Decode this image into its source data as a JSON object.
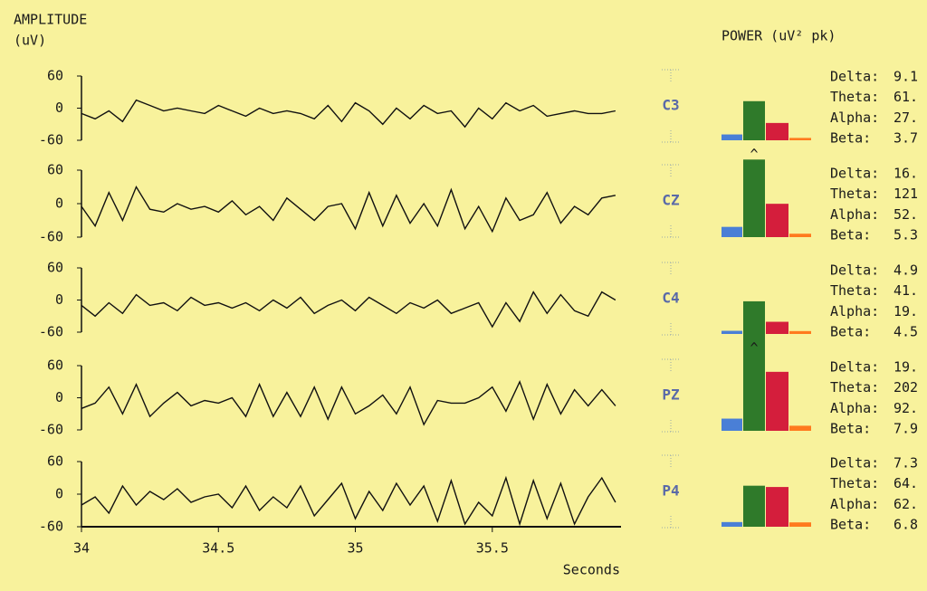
{
  "header": {
    "amplitude_label": "AMPLITUDE",
    "amplitude_unit": "(uV)",
    "power_label": "POWER (uV² pk)"
  },
  "chart_data": [
    {
      "type": "line",
      "x_label": "Seconds",
      "xlim": [
        34,
        35.97
      ],
      "xticks": [
        34,
        34.5,
        35,
        35.5
      ],
      "ylim": [
        -60,
        60
      ],
      "yticks": [
        -60,
        0,
        60
      ],
      "color": "#111111",
      "x": [
        34,
        34.05,
        34.1,
        34.15,
        34.2,
        34.25,
        34.3,
        34.35,
        34.4,
        34.45,
        34.5,
        34.55,
        34.6,
        34.65,
        34.7,
        34.75,
        34.8,
        34.85,
        34.9,
        34.95,
        35,
        35.05,
        35.1,
        35.15,
        35.2,
        35.25,
        35.3,
        35.35,
        35.4,
        35.45,
        35.5,
        35.55,
        35.6,
        35.65,
        35.7,
        35.75,
        35.8,
        35.85,
        35.9,
        35.95
      ],
      "series": [
        {
          "name": "C3",
          "values": [
            -10,
            -20,
            -5,
            -25,
            15,
            5,
            -5,
            0,
            -5,
            -10,
            5,
            -5,
            -15,
            0,
            -10,
            -5,
            -10,
            -20,
            5,
            -25,
            10,
            -5,
            -30,
            0,
            -20,
            5,
            -10,
            -5,
            -35,
            0,
            -20,
            10,
            -5,
            5,
            -15,
            -10,
            -5,
            -10,
            -10,
            -5
          ]
        },
        {
          "name": "CZ",
          "values": [
            -5,
            -40,
            20,
            -30,
            30,
            -10,
            -15,
            0,
            -10,
            -5,
            -15,
            5,
            -20,
            -5,
            -30,
            10,
            -10,
            -30,
            -5,
            0,
            -45,
            20,
            -40,
            15,
            -35,
            0,
            -40,
            25,
            -45,
            -5,
            -50,
            10,
            -30,
            -20,
            20,
            -35,
            -5,
            -20,
            10,
            15
          ]
        },
        {
          "name": "C4",
          "values": [
            -10,
            -30,
            -5,
            -25,
            10,
            -10,
            -5,
            -20,
            5,
            -10,
            -5,
            -15,
            -5,
            -20,
            0,
            -15,
            5,
            -25,
            -10,
            0,
            -20,
            5,
            -10,
            -25,
            -5,
            -15,
            0,
            -25,
            -15,
            -5,
            -50,
            -5,
            -40,
            15,
            -25,
            10,
            -20,
            -30,
            15,
            0
          ]
        },
        {
          "name": "PZ",
          "values": [
            -20,
            -10,
            20,
            -30,
            25,
            -35,
            -10,
            10,
            -15,
            -5,
            -10,
            0,
            -35,
            25,
            -35,
            10,
            -35,
            20,
            -40,
            20,
            -30,
            -15,
            5,
            -30,
            20,
            -50,
            -5,
            -10,
            -10,
            0,
            20,
            -25,
            30,
            -40,
            25,
            -30,
            15,
            -15,
            15,
            -15
          ]
        },
        {
          "name": "P4",
          "values": [
            -20,
            -5,
            -35,
            15,
            -20,
            5,
            -10,
            10,
            -15,
            -5,
            0,
            -25,
            15,
            -30,
            -5,
            -25,
            15,
            -40,
            -10,
            20,
            -45,
            5,
            -30,
            20,
            -20,
            15,
            -50,
            25,
            -55,
            -15,
            -40,
            30,
            -55,
            25,
            -45,
            20,
            -55,
            -5,
            30,
            -15
          ]
        }
      ]
    },
    {
      "type": "bar",
      "categories": [
        "Delta:",
        "Theta:",
        "Alpha:",
        "Beta:"
      ],
      "colors": [
        "#4a7fd6",
        "#2f7a2a",
        "#d41e3c",
        "#ff7a1e"
      ],
      "ylim": [
        0,
        120
      ],
      "clip_marker": "^",
      "series": [
        {
          "values": [
            9.1,
            61,
            27,
            3.7
          ],
          "value_labels": [
            "9.1",
            "61.",
            "27.",
            "3.7"
          ]
        },
        {
          "values": [
            16,
            121,
            52,
            5.3
          ],
          "value_labels": [
            "16.",
            "121",
            "52.",
            "5.3"
          ]
        },
        {
          "values": [
            4.9,
            41,
            19,
            4.5
          ],
          "value_labels": [
            "4.9",
            "41.",
            "19.",
            "4.5"
          ]
        },
        {
          "values": [
            19,
            202,
            92,
            7.9
          ],
          "value_labels": [
            "19.",
            "202",
            "92.",
            "7.9"
          ]
        },
        {
          "values": [
            7.3,
            64,
            62,
            6.8
          ],
          "value_labels": [
            "7.3",
            "64.",
            "62.",
            "6.8"
          ]
        }
      ]
    }
  ]
}
